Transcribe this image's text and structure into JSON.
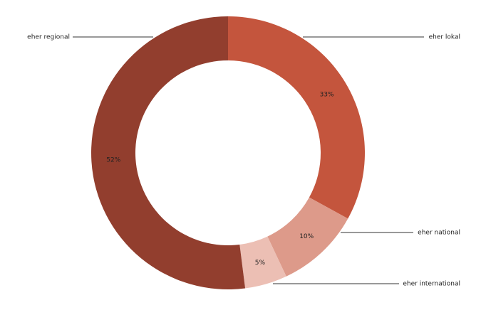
{
  "chart_data": {
    "type": "donut",
    "categories": [
      "eher lokal",
      "eher national",
      "eher international",
      "eher regional"
    ],
    "values": [
      33,
      10,
      5,
      52
    ],
    "value_labels": [
      "33%",
      "10%",
      "5%",
      "52%"
    ],
    "colors": [
      "#c4553d",
      "#dd9a8a",
      "#ecbfb4",
      "#923e2e"
    ]
  }
}
